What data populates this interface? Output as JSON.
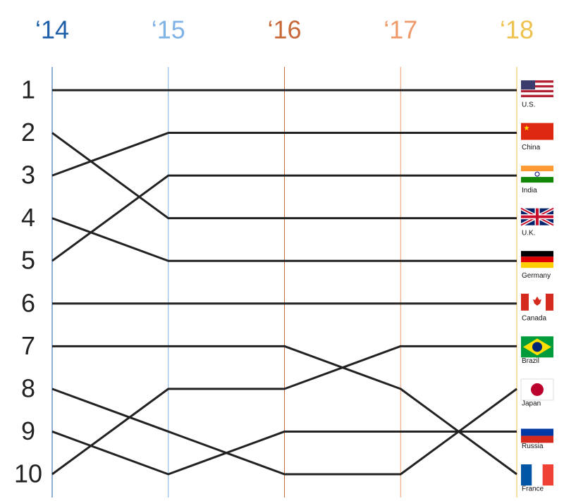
{
  "chart_data": {
    "type": "bump",
    "categories": [
      "‘14",
      "‘15",
      "‘16",
      "‘17",
      "‘18"
    ],
    "category_colors": [
      "#1f5fa8",
      "#7fb3e6",
      "#c8693a",
      "#ef9a6a",
      "#eec24e"
    ],
    "ylim": [
      1,
      10
    ],
    "y_inverted": true,
    "yticks": [
      1,
      2,
      3,
      4,
      5,
      6,
      7,
      8,
      9,
      10
    ],
    "series": [
      {
        "name": "U.S.",
        "color": "#222222",
        "values": [
          1,
          1,
          1,
          1,
          1
        ]
      },
      {
        "name": "China",
        "color": "#222222",
        "values": [
          3,
          2,
          2,
          2,
          2
        ]
      },
      {
        "name": "India",
        "color": "#222222",
        "values": [
          5,
          3,
          3,
          3,
          3
        ]
      },
      {
        "name": "U.K.",
        "color": "#222222",
        "values": [
          2,
          4,
          4,
          4,
          4
        ]
      },
      {
        "name": "Germany",
        "color": "#222222",
        "values": [
          4,
          5,
          5,
          5,
          5
        ]
      },
      {
        "name": "Canada",
        "color": "#222222",
        "values": [
          6,
          6,
          6,
          6,
          6
        ]
      },
      {
        "name": "Brazil",
        "color": "#222222",
        "values": [
          10,
          8,
          8,
          7,
          7
        ]
      },
      {
        "name": "Japan",
        "color": "#222222",
        "values": [
          8,
          9,
          10,
          10,
          8
        ]
      },
      {
        "name": "Russia",
        "color": "#222222",
        "values": [
          9,
          10,
          9,
          9,
          9
        ]
      },
      {
        "name": "France",
        "color": "#222222",
        "values": [
          7,
          7,
          7,
          8,
          10
        ]
      }
    ]
  }
}
